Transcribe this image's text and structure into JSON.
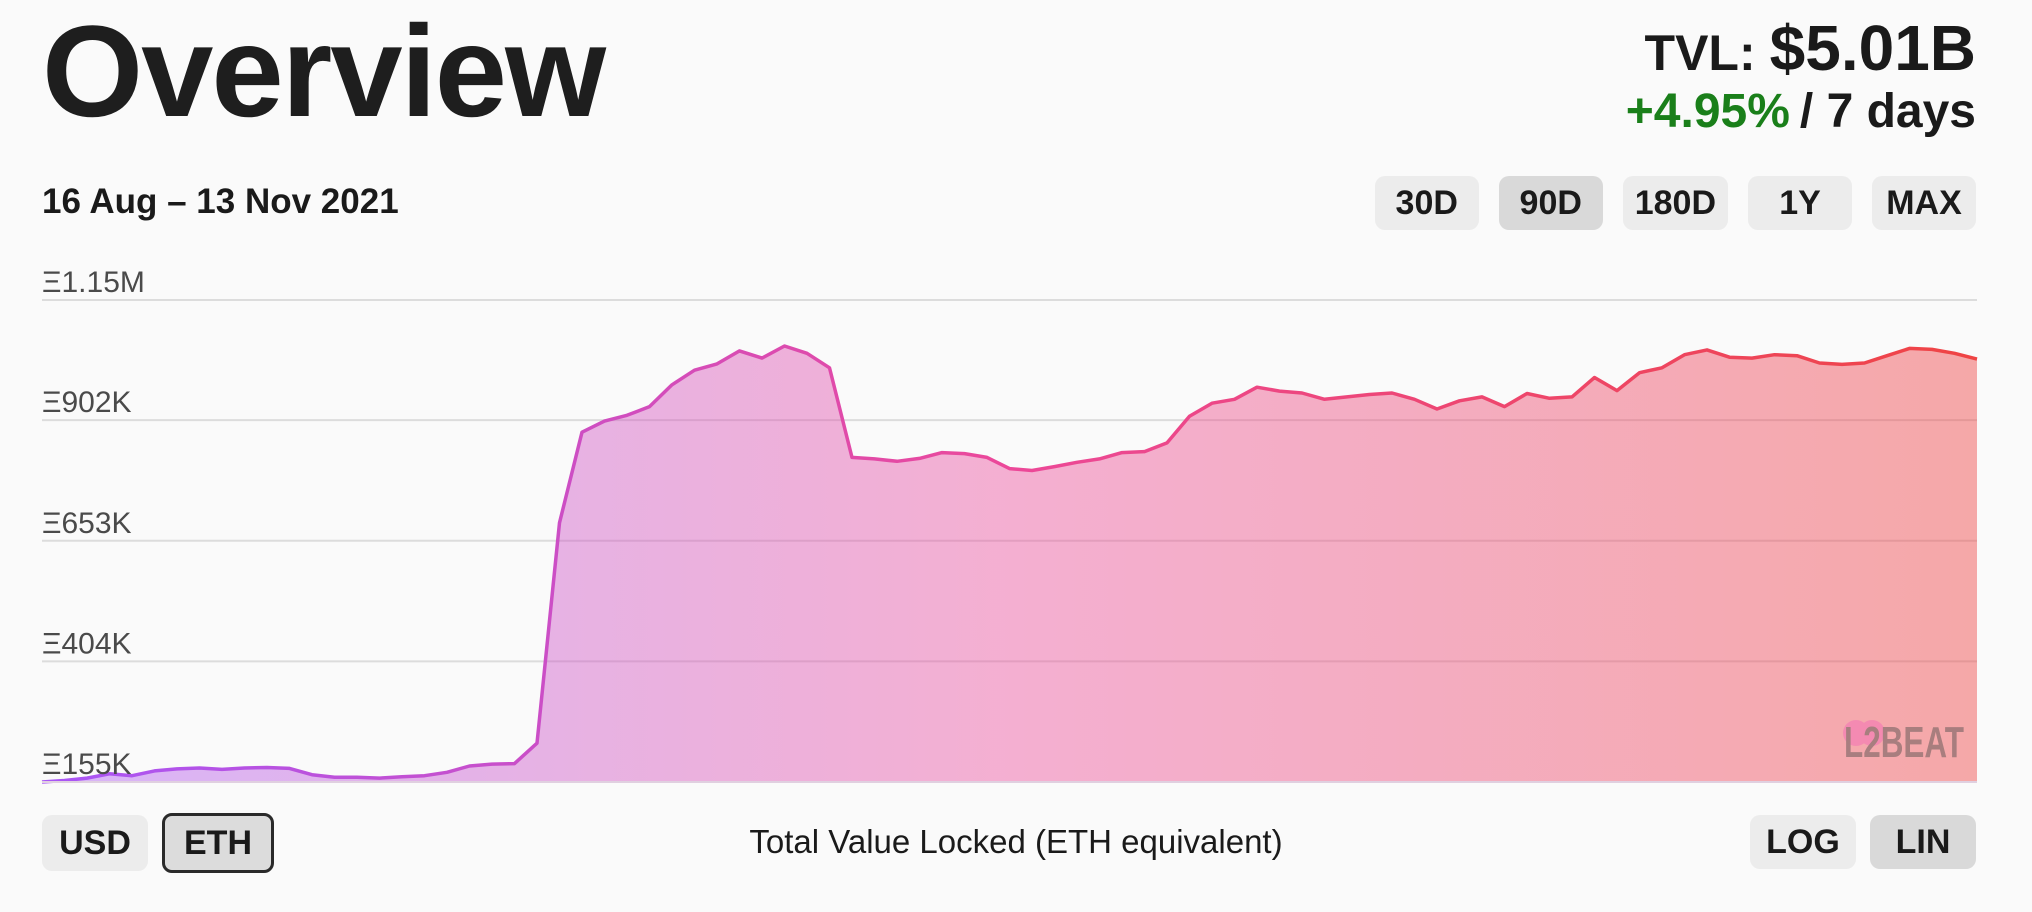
{
  "header": {
    "title": "Overview",
    "tvl_label": "TVL:",
    "tvl_value": "$5.01B",
    "change_pct": "+4.95%",
    "change_period": "/ 7 days"
  },
  "date_range": "16 Aug – 13 Nov 2021",
  "range_buttons": [
    {
      "label": "30D",
      "active": false
    },
    {
      "label": "90D",
      "active": true
    },
    {
      "label": "180D",
      "active": false
    },
    {
      "label": "1Y",
      "active": false
    },
    {
      "label": "MAX",
      "active": false
    }
  ],
  "currency_buttons": [
    {
      "label": "USD",
      "active": false
    },
    {
      "label": "ETH",
      "active": true
    }
  ],
  "scale_buttons": [
    {
      "label": "LOG",
      "active": false
    },
    {
      "label": "LIN",
      "active": true
    }
  ],
  "caption": "Total Value Locked (ETH equivalent)",
  "watermark": "L2BEAT",
  "colors": {
    "gradient_start": "#a855f7",
    "gradient_mid": "#ec4899",
    "gradient_end": "#ef4444",
    "positive": "#1a7f1a"
  },
  "chart_data": {
    "type": "area",
    "x_start": "2021-08-16",
    "x_end": "2021-11-13",
    "ylim": [
      155000,
      1150000
    ],
    "yticks": [
      155000,
      404000,
      653000,
      902000,
      1150000
    ],
    "ytick_labels": [
      "Ξ155K",
      "Ξ404K",
      "Ξ653K",
      "Ξ902K",
      "Ξ1.15M"
    ],
    "grid": true,
    "series": [
      {
        "values": [
          155000,
          158000,
          163000,
          172000,
          168000,
          178000,
          182000,
          184000,
          181000,
          184000,
          185000,
          183000,
          170000,
          165000,
          165000,
          163000,
          166000,
          168000,
          175000,
          188000,
          192000,
          193000,
          235000,
          690000,
          877000,
          900000,
          912000,
          930000,
          975000,
          1005000,
          1018000,
          1045000,
          1030000,
          1055000,
          1040000,
          1010000,
          825000,
          822000,
          817000,
          823000,
          835000,
          833000,
          825000,
          802000,
          798000,
          806000,
          815000,
          822000,
          835000,
          837000,
          855000,
          910000,
          937000,
          945000,
          970000,
          962000,
          958000,
          945000,
          950000,
          955000,
          958000,
          945000,
          925000,
          942000,
          950000,
          930000,
          957000,
          947000,
          950000,
          990000,
          963000,
          1000000,
          1010000,
          1037000,
          1047000,
          1032000,
          1030000,
          1037000,
          1035000,
          1020000,
          1017000,
          1020000,
          1035000,
          1050000,
          1048000,
          1040000,
          1028000
        ]
      }
    ]
  }
}
